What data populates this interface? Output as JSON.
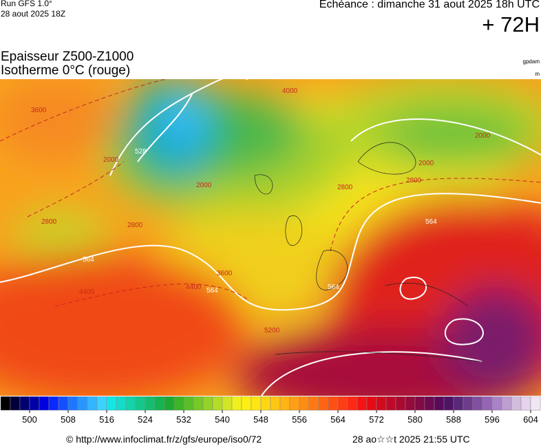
{
  "header": {
    "run": "Run GFS 1.0°",
    "run_date": "28 aout 2025 18Z",
    "valid": "Echéance : dimanche 31 aout 2025 18h UTC",
    "lead": "+ 72H"
  },
  "legend_title": {
    "line1": "Epaisseur Z500-Z1000",
    "line2": "Isotherme 0°C (rouge)",
    "unit1": "gpdam",
    "unit2": "m"
  },
  "map_labels": [
    "528",
    "564",
    "564",
    "564",
    "564",
    "2000",
    "2000",
    "2000",
    "2000",
    "2800",
    "2800",
    "2800",
    "2800",
    "3600",
    "3600",
    "4000",
    "4400",
    "4400",
    "5200"
  ],
  "colorbar": {
    "ticks": [
      500,
      508,
      516,
      524,
      532,
      540,
      548,
      556,
      564,
      572,
      580,
      588,
      596,
      604
    ]
  },
  "footer": {
    "url": "© http://www.infoclimat.fr/z/gfs/europe/iso0/72",
    "generated": "28 ao☆☆t 2025 21:55 UTC"
  }
}
